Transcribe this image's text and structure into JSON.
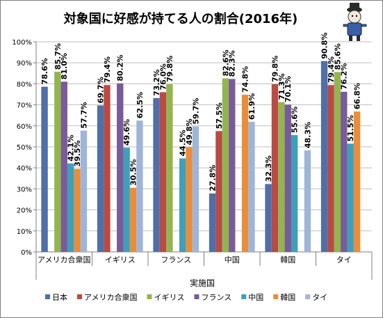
{
  "chart_data": {
    "type": "bar",
    "title": "対象国に好感が持てる人の割合(2016年)",
    "xlabel": "実施国",
    "ylabel": "",
    "ylim": [
      0,
      100
    ],
    "y_ticks": [
      "0%",
      "10%",
      "20%",
      "30%",
      "40%",
      "50%",
      "60%",
      "70%",
      "80%",
      "90%",
      "100%"
    ],
    "grid": true,
    "legend_position": "bottom",
    "categories": [
      "アメリカ合衆国",
      "イギリス",
      "フランス",
      "中国",
      "韓国",
      "タイ"
    ],
    "series": [
      {
        "name": "日本",
        "color": "#4f6fa8",
        "values": [
          78.6,
          69.7,
          73.2,
          27.8,
          32.3,
          90.8
        ]
      },
      {
        "name": "アメリカ合衆国",
        "color": "#b94a44",
        "values": [
          null,
          79.4,
          76.0,
          57.5,
          79.8,
          79.4
        ]
      },
      {
        "name": "イギリス",
        "color": "#93b54f",
        "values": [
          85.7,
          null,
          79.8,
          82.6,
          71.3,
          85.6
        ]
      },
      {
        "name": "フランス",
        "color": "#7a5b9a",
        "values": [
          81.0,
          80.2,
          null,
          82.3,
          70.1,
          76.2
        ]
      },
      {
        "name": "中国",
        "color": "#3f9fb8",
        "values": [
          42.1,
          49.6,
          44.5,
          null,
          55.6,
          51.5
        ]
      },
      {
        "name": "韓国",
        "color": "#ea8d3a",
        "values": [
          39.5,
          30.5,
          49.8,
          74.8,
          null,
          66.8
        ]
      },
      {
        "name": "タイ",
        "color": "#9fb5d8",
        "values": [
          57.7,
          62.5,
          59.7,
          61.9,
          48.3,
          null
        ]
      }
    ]
  }
}
